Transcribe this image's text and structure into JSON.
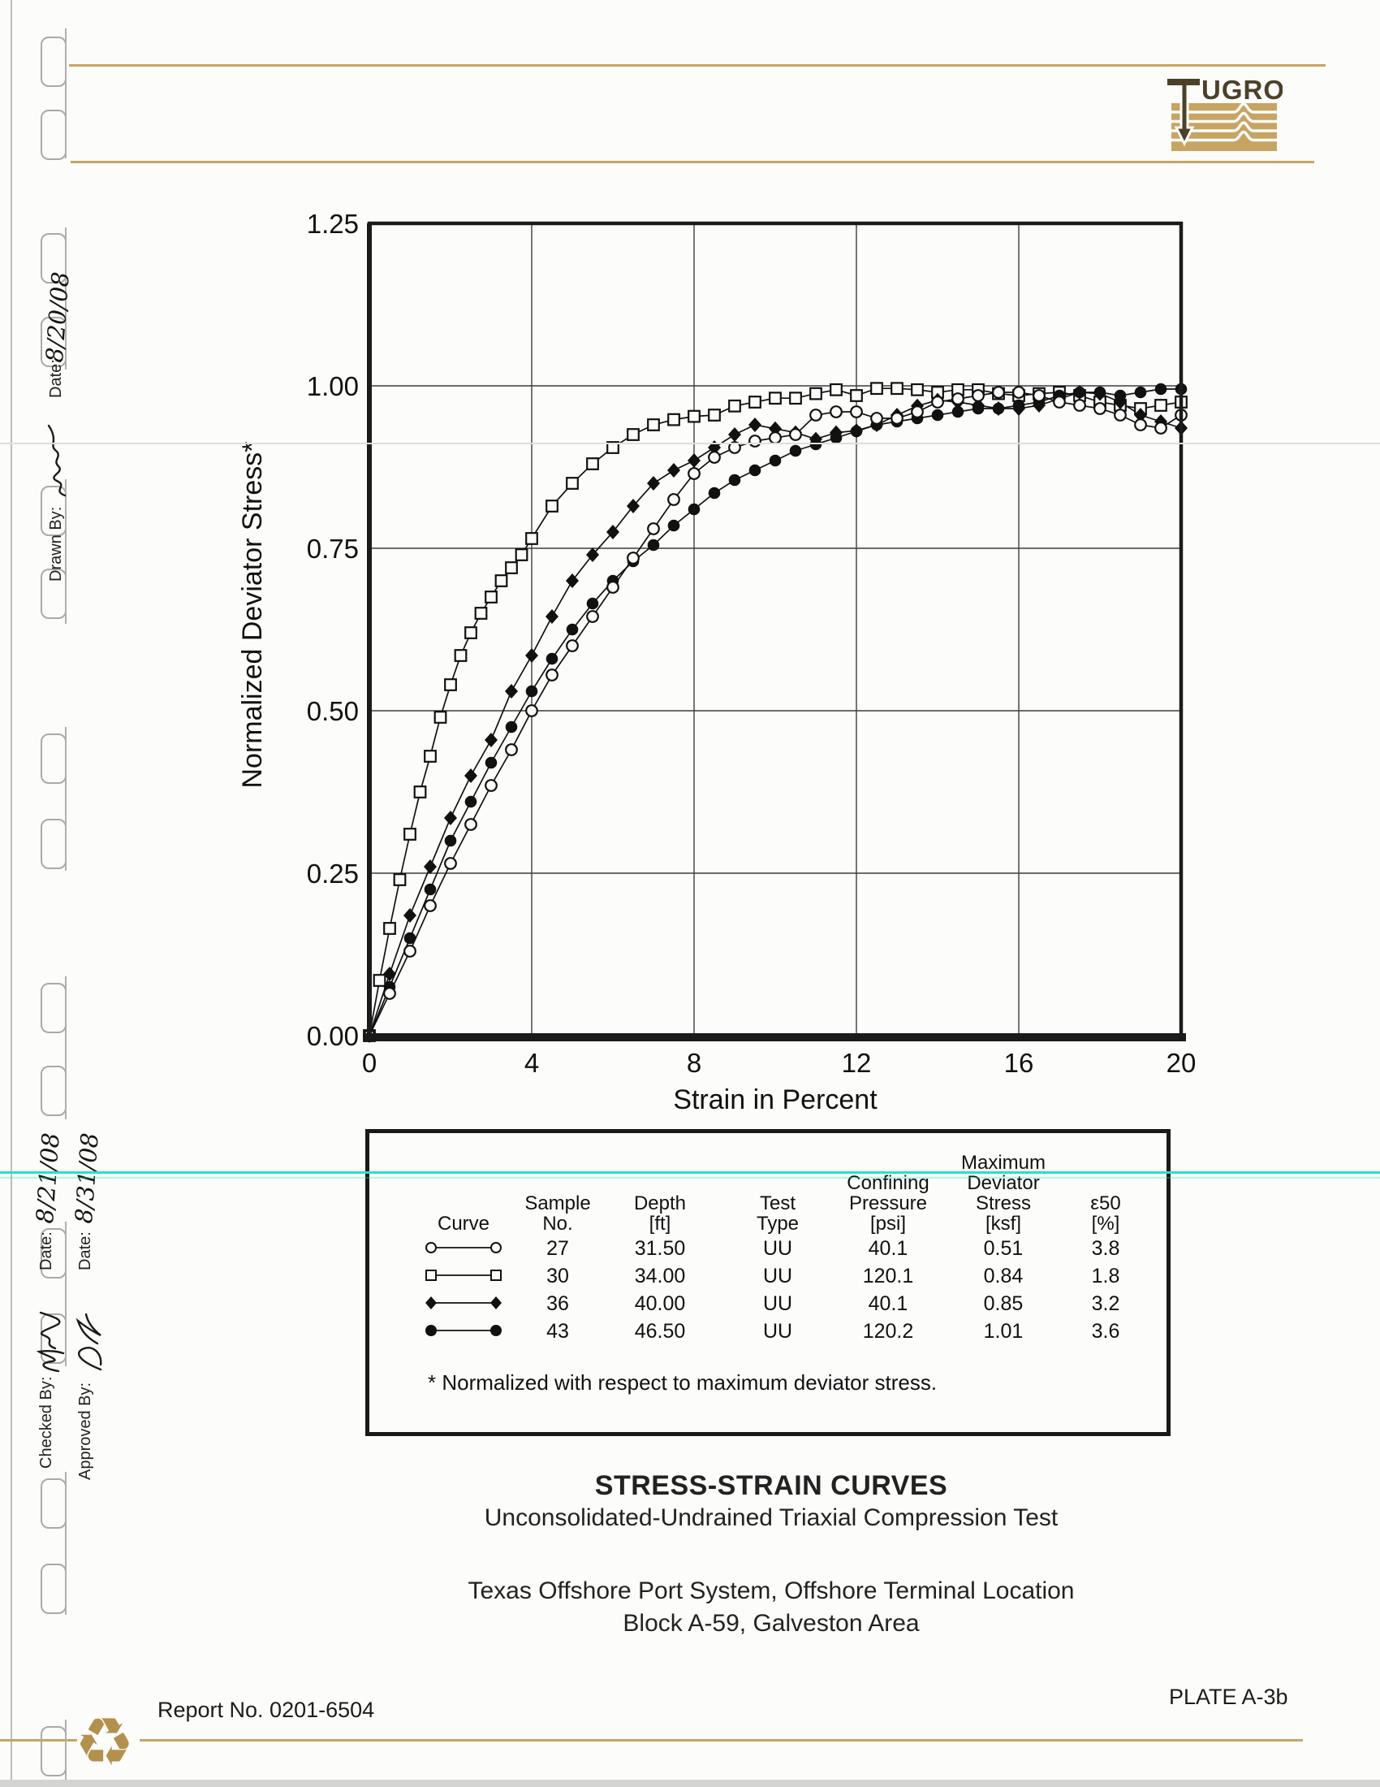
{
  "page": {
    "bg_color": "#fcfcfa"
  },
  "logo": {
    "brand": "Fugro",
    "wordmark_rest": "UGRO",
    "tan_color": "#c8a462",
    "dark_color": "#4a4128"
  },
  "margin_notes": {
    "drawn_by_label": "Drawn By:",
    "drawn_date_label": "Date:",
    "drawn_date_value": "8/20/08",
    "checked_by_label": "Checked By:",
    "checked_date_label": "Date:",
    "checked_date_value": "8/21/08",
    "approved_by_label": "Approved By:",
    "approved_date_label": "Date:",
    "approved_date_value": "8/31/08"
  },
  "chart_data": {
    "type": "line",
    "title": "",
    "xlabel": "Strain in Percent",
    "ylabel": "Normalized Deviator Stress*",
    "xlim": [
      0,
      20
    ],
    "ylim": [
      0,
      1.25
    ],
    "xticks": [
      "0",
      "4",
      "8",
      "12",
      "16",
      "20"
    ],
    "yticks": [
      "0.00",
      "0.25",
      "0.50",
      "0.75",
      "1.00",
      "1.25"
    ],
    "grid": true,
    "legend_position": "table-below",
    "series": [
      {
        "name": "Sample 27",
        "marker": "circle-open",
        "points": [
          [
            0,
            0
          ],
          [
            0.5,
            0.065
          ],
          [
            1,
            0.13
          ],
          [
            1.5,
            0.2
          ],
          [
            2,
            0.265
          ],
          [
            2.5,
            0.325
          ],
          [
            3,
            0.385
          ],
          [
            3.5,
            0.44
          ],
          [
            4,
            0.5
          ],
          [
            4.5,
            0.555
          ],
          [
            5,
            0.6
          ],
          [
            5.5,
            0.645
          ],
          [
            6,
            0.69
          ],
          [
            6.5,
            0.735
          ],
          [
            7,
            0.78
          ],
          [
            7.5,
            0.825
          ],
          [
            8,
            0.865
          ],
          [
            8.5,
            0.89
          ],
          [
            9,
            0.905
          ],
          [
            9.5,
            0.915
          ],
          [
            10,
            0.92
          ],
          [
            10.5,
            0.925
          ],
          [
            11,
            0.955
          ],
          [
            11.5,
            0.96
          ],
          [
            12,
            0.96
          ],
          [
            12.5,
            0.95
          ],
          [
            13,
            0.95
          ],
          [
            13.5,
            0.96
          ],
          [
            14,
            0.975
          ],
          [
            14.5,
            0.98
          ],
          [
            15,
            0.985
          ],
          [
            15.5,
            0.99
          ],
          [
            16,
            0.99
          ],
          [
            16.5,
            0.985
          ],
          [
            17,
            0.975
          ],
          [
            17.5,
            0.97
          ],
          [
            18,
            0.965
          ],
          [
            18.5,
            0.955
          ],
          [
            19,
            0.94
          ],
          [
            19.5,
            0.935
          ],
          [
            20,
            0.955
          ]
        ]
      },
      {
        "name": "Sample 30",
        "marker": "square-open",
        "points": [
          [
            0,
            0
          ],
          [
            0.25,
            0.085
          ],
          [
            0.5,
            0.165
          ],
          [
            0.75,
            0.24
          ],
          [
            1,
            0.31
          ],
          [
            1.25,
            0.375
          ],
          [
            1.5,
            0.43
          ],
          [
            1.75,
            0.49
          ],
          [
            2,
            0.54
          ],
          [
            2.25,
            0.585
          ],
          [
            2.5,
            0.62
          ],
          [
            2.75,
            0.65
          ],
          [
            3,
            0.675
          ],
          [
            3.25,
            0.7
          ],
          [
            3.5,
            0.72
          ],
          [
            3.75,
            0.74
          ],
          [
            4,
            0.765
          ],
          [
            4.5,
            0.815
          ],
          [
            5,
            0.85
          ],
          [
            5.5,
            0.88
          ],
          [
            6,
            0.905
          ],
          [
            6.5,
            0.925
          ],
          [
            7,
            0.94
          ],
          [
            7.5,
            0.948
          ],
          [
            8,
            0.953
          ],
          [
            8.5,
            0.955
          ],
          [
            9,
            0.969
          ],
          [
            9.5,
            0.975
          ],
          [
            10,
            0.981
          ],
          [
            10.5,
            0.981
          ],
          [
            11,
            0.988
          ],
          [
            11.5,
            0.994
          ],
          [
            12,
            0.985
          ],
          [
            12.5,
            0.996
          ],
          [
            13,
            0.996
          ],
          [
            13.5,
            0.994
          ],
          [
            14,
            0.99
          ],
          [
            14.5,
            0.994
          ],
          [
            15,
            0.994
          ],
          [
            15.5,
            0.988
          ],
          [
            16,
            0.985
          ],
          [
            16.5,
            0.988
          ],
          [
            17,
            0.99
          ],
          [
            17.5,
            0.985
          ],
          [
            18,
            0.975
          ],
          [
            18.5,
            0.97
          ],
          [
            19,
            0.965
          ],
          [
            19.5,
            0.97
          ],
          [
            20,
            0.975
          ]
        ]
      },
      {
        "name": "Sample 36",
        "marker": "diamond-filled",
        "points": [
          [
            0,
            0
          ],
          [
            0.5,
            0.095
          ],
          [
            1,
            0.185
          ],
          [
            1.5,
            0.26
          ],
          [
            2,
            0.335
          ],
          [
            2.5,
            0.4
          ],
          [
            3,
            0.455
          ],
          [
            3.5,
            0.53
          ],
          [
            4,
            0.585
          ],
          [
            4.5,
            0.645
          ],
          [
            5,
            0.7
          ],
          [
            5.5,
            0.74
          ],
          [
            6,
            0.775
          ],
          [
            6.5,
            0.815
          ],
          [
            7,
            0.85
          ],
          [
            7.5,
            0.87
          ],
          [
            8,
            0.885
          ],
          [
            8.5,
            0.905
          ],
          [
            9,
            0.925
          ],
          [
            9.5,
            0.94
          ],
          [
            10,
            0.934
          ],
          [
            10.5,
            0.928
          ],
          [
            11,
            0.918
          ],
          [
            11.5,
            0.928
          ],
          [
            12,
            0.931
          ],
          [
            12.5,
            0.94
          ],
          [
            13,
            0.955
          ],
          [
            13.5,
            0.969
          ],
          [
            14,
            0.978
          ],
          [
            14.5,
            0.975
          ],
          [
            15,
            0.97
          ],
          [
            15.5,
            0.965
          ],
          [
            16,
            0.965
          ],
          [
            16.5,
            0.97
          ],
          [
            17,
            0.98
          ],
          [
            17.5,
            0.99
          ],
          [
            18,
            0.988
          ],
          [
            18.5,
            0.975
          ],
          [
            19,
            0.955
          ],
          [
            19.5,
            0.945
          ],
          [
            20,
            0.935
          ]
        ]
      },
      {
        "name": "Sample 43",
        "marker": "circle-filled",
        "points": [
          [
            0,
            0
          ],
          [
            0.5,
            0.075
          ],
          [
            1,
            0.15
          ],
          [
            1.5,
            0.225
          ],
          [
            2,
            0.3
          ],
          [
            2.5,
            0.36
          ],
          [
            3,
            0.42
          ],
          [
            3.5,
            0.475
          ],
          [
            4,
            0.53
          ],
          [
            4.5,
            0.58
          ],
          [
            5,
            0.625
          ],
          [
            5.5,
            0.665
          ],
          [
            6,
            0.7
          ],
          [
            6.5,
            0.73
          ],
          [
            7,
            0.755
          ],
          [
            7.5,
            0.785
          ],
          [
            8,
            0.81
          ],
          [
            8.5,
            0.835
          ],
          [
            9,
            0.855
          ],
          [
            9.5,
            0.87
          ],
          [
            10,
            0.885
          ],
          [
            10.5,
            0.9
          ],
          [
            11,
            0.91
          ],
          [
            11.5,
            0.92
          ],
          [
            12,
            0.93
          ],
          [
            12.5,
            0.94
          ],
          [
            13,
            0.945
          ],
          [
            13.5,
            0.95
          ],
          [
            14,
            0.955
          ],
          [
            14.5,
            0.96
          ],
          [
            15,
            0.965
          ],
          [
            15.5,
            0.965
          ],
          [
            16,
            0.97
          ],
          [
            16.5,
            0.975
          ],
          [
            17,
            0.985
          ],
          [
            17.5,
            0.99
          ],
          [
            18,
            0.99
          ],
          [
            18.5,
            0.985
          ],
          [
            19,
            0.99
          ],
          [
            19.5,
            0.995
          ],
          [
            20,
            0.995
          ]
        ]
      }
    ]
  },
  "legend_table": {
    "columns": [
      {
        "lines": [
          "Curve"
        ]
      },
      {
        "lines": [
          "Sample",
          "No."
        ]
      },
      {
        "lines": [
          "Depth",
          "[ft]"
        ]
      },
      {
        "lines": [
          "Test",
          "Type"
        ]
      },
      {
        "lines": [
          "Confining",
          "Pressure",
          "[psi]"
        ]
      },
      {
        "lines": [
          "Maximum",
          "Deviator",
          "Stress",
          "[ksf]"
        ]
      },
      {
        "lines": [
          "ε50",
          "[%]"
        ]
      }
    ],
    "rows": [
      {
        "marker": "circle-open",
        "sample_no": "27",
        "depth_ft": "31.50",
        "test_type": "UU",
        "confining_pressure_psi": "40.1",
        "max_deviator_stress_ksf": "0.51",
        "e50_pct": "3.8"
      },
      {
        "marker": "square-open",
        "sample_no": "30",
        "depth_ft": "34.00",
        "test_type": "UU",
        "confining_pressure_psi": "120.1",
        "max_deviator_stress_ksf": "0.84",
        "e50_pct": "1.8"
      },
      {
        "marker": "diamond-filled",
        "sample_no": "36",
        "depth_ft": "40.00",
        "test_type": "UU",
        "confining_pressure_psi": "40.1",
        "max_deviator_stress_ksf": "0.85",
        "e50_pct": "3.2"
      },
      {
        "marker": "circle-filled",
        "sample_no": "43",
        "depth_ft": "46.50",
        "test_type": "UU",
        "confining_pressure_psi": "120.2",
        "max_deviator_stress_ksf": "1.01",
        "e50_pct": "3.6"
      }
    ],
    "footnote": "* Normalized with respect to maximum deviator stress."
  },
  "titles": {
    "main": "STRESS-STRAIN CURVES",
    "subtitle": "Unconsolidated-Undrained Triaxial Compression Test",
    "location_line1": "Texas Offshore Port System, Offshore Terminal Location",
    "location_line2": "Block A-59, Galveston Area"
  },
  "footer": {
    "report_no": "Report No. 0201-6504",
    "plate": "PLATE A-3b"
  },
  "accent_colors": {
    "gold": "#c9a464",
    "cyan": "#25e0cd"
  }
}
